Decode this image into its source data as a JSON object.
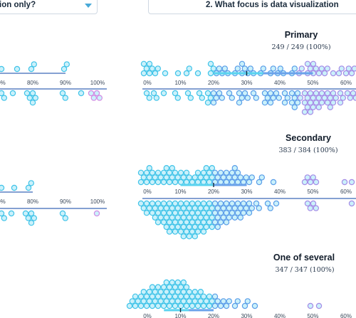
{
  "header": {
    "left_dropdown": {
      "label": "ion only?",
      "icon": "chevron-down-icon",
      "caret_color": "#48a9d8"
    },
    "right_dropdown": {
      "label": "2. What focus is data visualization"
    }
  },
  "colors": {
    "dot_fill_light": "#9fe6f7",
    "dot_stroke_cyan": "#3fc3e8",
    "dot_stroke_blue": "#5a9de8",
    "dot_stroke_purple": "#a48be6",
    "dot_stroke_pink": "#d38ae3",
    "axis_line": "#3b67b7",
    "band_cyan": "#59d3ef",
    "band_blue": "#6aa2ea",
    "median_tick": "#1a2b3c"
  },
  "chart_data": [
    {
      "type": "beeswarm",
      "title": "",
      "panel": "left-cropped-top",
      "x_ticks": [
        "0%",
        "80%",
        "90%",
        "100%"
      ]
    },
    {
      "type": "beeswarm",
      "title": "",
      "panel": "left-cropped-middle",
      "x_ticks": [
        "0%",
        "80%",
        "90%",
        "100%"
      ]
    },
    {
      "type": "beeswarm",
      "title": "Primary",
      "count": "249 / 249 (100%)",
      "x_ticks": [
        "0%",
        "10%",
        "20%",
        "30%",
        "40%",
        "50%",
        "60%"
      ],
      "median_pct": 30,
      "band_pct": [
        20,
        50
      ]
    },
    {
      "type": "beeswarm",
      "title": "Secondary",
      "count": "383 / 384 (100%)",
      "x_ticks": [
        "0%",
        "10%",
        "20%",
        "30%",
        "40%",
        "50%",
        "60%"
      ],
      "median_pct": 20,
      "band_pct": [
        10,
        30
      ]
    },
    {
      "type": "beeswarm",
      "title": "One of several",
      "count": "347 / 347 (100%)",
      "x_ticks": [
        "0%",
        "10%",
        "20%",
        "30%",
        "40%",
        "50%",
        "60%"
      ],
      "median_pct": 10,
      "band_pct": [
        5,
        20
      ]
    }
  ]
}
